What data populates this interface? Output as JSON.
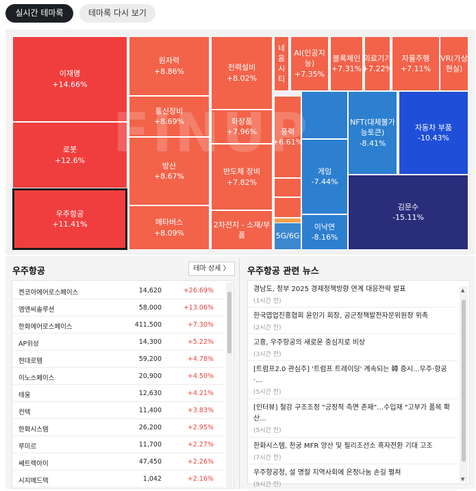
{
  "tabs": {
    "active": "실시간 테마록",
    "inactive": "테마록 다시 보기"
  },
  "watermark": "FINUP",
  "treemap": [
    {
      "name": "이재명",
      "change": "+14.66%",
      "color": "#f03e3e"
    },
    {
      "name": "로봇",
      "change": "+12.6%",
      "color": "#f03e3e"
    },
    {
      "name": "우주항공",
      "change": "+11.41%",
      "color": "#f03e3e",
      "selected": true
    },
    {
      "name": "원자력",
      "change": "+8.86%",
      "color": "#f2634a"
    },
    {
      "name": "통신장비",
      "change": "+8.69%",
      "color": "#f2634a"
    },
    {
      "name": "방산",
      "change": "+8.67%",
      "color": "#f2634a"
    },
    {
      "name": "메타버스",
      "change": "+8.09%",
      "color": "#f2634a"
    },
    {
      "name": "전력설비",
      "change": "+8.02%",
      "color": "#f2634a"
    },
    {
      "name": "화장품",
      "change": "+7.96%",
      "color": "#f2634a"
    },
    {
      "name": "반도체 장비",
      "change": "+7.82%",
      "color": "#f2634a"
    },
    {
      "name": "2차전지 - 소재/부품",
      "change": "",
      "color": "#f2634a"
    },
    {
      "name": "네옴시티",
      "change": "",
      "color": "#f2634a"
    },
    {
      "name": "AI(인공지능)",
      "change": "+7.35%",
      "color": "#f2634a"
    },
    {
      "name": "블록체인",
      "change": "+7.31%",
      "color": "#f2634a"
    },
    {
      "name": "의료기기",
      "change": "+7.22%",
      "color": "#f2634a"
    },
    {
      "name": "자율주행",
      "change": "+7.11%",
      "color": "#f2634a"
    },
    {
      "name": "VR(가상현실)",
      "change": "",
      "color": "#f2634a"
    },
    {
      "name": "풍력",
      "change": "+6.61%",
      "color": "#f2634a"
    },
    {
      "name": "",
      "change": "",
      "color": "#f2634a"
    },
    {
      "name": "",
      "change": "",
      "color": "#f2634a"
    },
    {
      "name": "",
      "change": "",
      "color": "#f5a04a"
    },
    {
      "name": "",
      "change": "",
      "color": "#f5a04a"
    },
    {
      "name": "5G/6G",
      "change": "",
      "color": "#3b88cf"
    },
    {
      "name": "NFT(대체불가능토큰)",
      "change": "-8.41%",
      "color": "#2d7fd0"
    },
    {
      "name": "게임",
      "change": "-7.44%",
      "color": "#2d7fd0"
    },
    {
      "name": "",
      "change": "",
      "color": "#2d7fd0"
    },
    {
      "name": "이낙연",
      "change": "-8.16%",
      "color": "#2d7fd0"
    },
    {
      "name": "자동차 부품",
      "change": "-10.43%",
      "color": "#1f4fd8"
    },
    {
      "name": "김문수",
      "change": "-15.11%",
      "color": "#2a2d7a"
    }
  ],
  "stocks_panel": {
    "title": "우주항공",
    "detail_button": "테마 상세 〉",
    "rows": [
      {
        "name": "켄코아에어로스페이스",
        "price": "14,620",
        "change": "+26.69%"
      },
      {
        "name": "엠엔씨솔루션",
        "price": "58,000",
        "change": "+13.06%"
      },
      {
        "name": "한화에어로스페이스",
        "price": "411,500",
        "change": "+7.30%"
      },
      {
        "name": "AP위성",
        "price": "14,300",
        "change": "+5.22%"
      },
      {
        "name": "현대로템",
        "price": "59,200",
        "change": "+4.78%"
      },
      {
        "name": "이노스페이스",
        "price": "20,900",
        "change": "+4.50%"
      },
      {
        "name": "태웅",
        "price": "12,630",
        "change": "+4.21%"
      },
      {
        "name": "컨텍",
        "price": "11,400",
        "change": "+3.83%"
      },
      {
        "name": "한화시스템",
        "price": "26,200",
        "change": "+2.95%"
      },
      {
        "name": "루미르",
        "price": "11,700",
        "change": "+2.27%"
      },
      {
        "name": "쎄트렉아이",
        "price": "47,450",
        "change": "+2.26%"
      },
      {
        "name": "시지메드텍",
        "price": "1,042",
        "change": "+2.16%"
      }
    ]
  },
  "news_panel": {
    "title": "우주항공 관련 뉴스",
    "items": [
      {
        "title": "경남도, 정부 2025 경제정책방향 연계 대응전략 발표",
        "time": "(1시간 전)"
      },
      {
        "title": "한국엽업진흥협회 윤인기 회장, 공군정책발전자문위원장 위촉",
        "time": "(2시간 전)"
      },
      {
        "title": "고흥, 우주항공의 새로운 중심지로 비상",
        "time": "(3시간 전)"
      },
      {
        "title": "[트럼프2.0 관심주] '트럼프 트레이딩' 계속되는 韓 증시...우주·항공·...",
        "time": "(5시간 전)"
      },
      {
        "title": "[인터뷰] 철강 구조조정 \"긍정적 측면 존재\"…수입재 \"고부가 품목 확산...",
        "time": "(5시간 전)"
      },
      {
        "title": "한화시스템, 천궁 MFR 양산 및 필리조선소 흑자전환 기대 고조",
        "time": "(7시간 전)"
      },
      {
        "title": "우주항공청, 설 명절 지역사회에 온정나눔 손길 펼쳐",
        "time": "(9시간 전)"
      }
    ]
  }
}
